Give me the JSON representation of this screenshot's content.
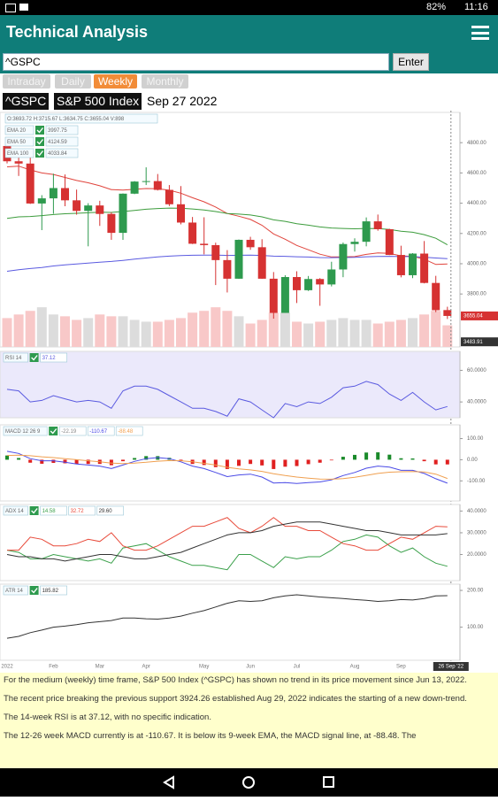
{
  "status_bar": {
    "time": "11:16",
    "battery": "82%"
  },
  "app_bar": {
    "title": "Technical Analysis"
  },
  "search": {
    "value": "^GSPC",
    "button": "Enter"
  },
  "tabs": [
    "Intraday",
    "Daily",
    "Weekly",
    "Monthly"
  ],
  "active_tab": 2,
  "symbol_bar": {
    "symbol": "^GSPC",
    "name": "S&P 500 Index",
    "date": "Sep 27 2022"
  },
  "chart_data": [
    {
      "type": "candlestick",
      "ohlc_text": "O:3693.72 H:3715.67 L:3634.75 C:3655.04 V:898",
      "categories": [
        "2022",
        null,
        null,
        null,
        "Feb",
        null,
        null,
        null,
        "Mar",
        null,
        null,
        null,
        "Apr",
        null,
        null,
        null,
        null,
        "May",
        null,
        null,
        null,
        "Jun",
        null,
        null,
        null,
        "Jul",
        null,
        null,
        null,
        null,
        "Aug",
        null,
        null,
        null,
        "Sep",
        null,
        null,
        null,
        null
      ],
      "crosshair_date": "26 Sep '22",
      "crosshair_price": 3483.91,
      "ylim": [
        3450,
        5000
      ],
      "yticks": [
        {
          "value": 3800,
          "label": "3800.00"
        },
        {
          "value": 4000,
          "label": "4000.00"
        },
        {
          "value": 4200,
          "label": "4200.00"
        },
        {
          "value": 4400,
          "label": "4400.00"
        },
        {
          "value": 4600,
          "label": "4600.00"
        },
        {
          "value": 4800,
          "label": "4800.00"
        }
      ],
      "up_color": "#2e9a4e",
      "down_color": "#d63232",
      "open": [
        4778,
        4677,
        4662,
        4398,
        4432,
        4500,
        4419,
        4349,
        4385,
        4329,
        4204,
        4463,
        4543,
        4546,
        4488,
        4393,
        4272,
        4132,
        4123,
        4024,
        3901,
        4158,
        4109,
        3901,
        3675,
        3912,
        3825,
        3899,
        3863,
        3962,
        4130,
        4145,
        4280,
        4228,
        4058,
        3924,
        4067,
        3873,
        3693.72
      ],
      "high": [
        4818,
        4750,
        4715,
        4453,
        4595,
        4590,
        4490,
        4400,
        4416,
        4340,
        4465,
        4546,
        4637,
        4593,
        4520,
        4513,
        4309,
        4307,
        4139,
        4090,
        4160,
        4178,
        4162,
        3945,
        3924,
        3950,
        3919,
        3905,
        4013,
        4140,
        4168,
        4306,
        4325,
        4231,
        4119,
        4070,
        4150,
        3920,
        3715.67
      ],
      "low": [
        4663,
        4580,
        4395,
        4222,
        4330,
        4380,
        4324,
        4115,
        4250,
        4158,
        4158,
        4460,
        4520,
        4484,
        4381,
        4260,
        4130,
        4062,
        3859,
        3810,
        3900,
        4092,
        3900,
        3637,
        3675,
        3740,
        3820,
        3722,
        3850,
        3911,
        4080,
        4115,
        4218,
        4057,
        3910,
        3905,
        3870,
        3680,
        3634.75
      ],
      "close": [
        4677,
        4662,
        4398,
        4432,
        4500,
        4419,
        4349,
        4385,
        4329,
        4204,
        4463,
        4543,
        4546,
        4488,
        4393,
        4272,
        4132,
        4123,
        4024,
        3901,
        4158,
        4109,
        3901,
        3675,
        3912,
        3825,
        3899,
        3863,
        3962,
        4130,
        4145,
        4280,
        4228,
        4058,
        3924,
        4067,
        3873,
        3693,
        3655.04
      ],
      "volume": [
        16,
        18,
        20,
        22,
        18,
        17,
        15,
        16,
        18,
        17,
        17,
        15,
        14,
        14,
        15,
        16,
        19,
        20,
        22,
        20,
        17,
        13,
        15,
        19,
        19,
        14,
        13,
        14,
        15,
        16,
        15,
        15,
        13,
        14,
        15,
        16,
        18,
        20,
        12
      ],
      "y2lim": [
        0,
        130
      ],
      "volume_up_color": "#dcdcdc",
      "volume_down_color": "#f8c8c8",
      "series": [
        {
          "name": "EMA 20",
          "color": "#e0443c",
          "last_label": "3997.75",
          "values": [
            4640,
            4645,
            4620,
            4600,
            4590,
            4570,
            4550,
            4535,
            4515,
            4490,
            4487,
            4492,
            4497,
            4496,
            4486,
            4466,
            4436,
            4409,
            4375,
            4332,
            4314,
            4293,
            4254,
            4197,
            4162,
            4121,
            4092,
            4063,
            4045,
            4045,
            4047,
            4062,
            4071,
            4068,
            4052,
            4049,
            4030,
            3995,
            3998
          ]
        },
        {
          "name": "EMA 50",
          "color": "#3c9c3c",
          "last_label": "4124.59",
          "values": [
            4300,
            4310,
            4312,
            4318,
            4325,
            4330,
            4333,
            4337,
            4340,
            4339,
            4345,
            4352,
            4360,
            4365,
            4368,
            4367,
            4362,
            4355,
            4345,
            4332,
            4328,
            4322,
            4310,
            4290,
            4280,
            4265,
            4255,
            4243,
            4236,
            4233,
            4231,
            4233,
            4232,
            4227,
            4215,
            4208,
            4192,
            4168,
            4125
          ]
        },
        {
          "name": "EMA 100",
          "color": "#5a5ae0",
          "last_label": "4033.84",
          "values": [
            3950,
            3960,
            3968,
            3975,
            3985,
            3992,
            3998,
            4004,
            4010,
            4015,
            4022,
            4030,
            4038,
            4045,
            4050,
            4054,
            4056,
            4057,
            4057,
            4055,
            4056,
            4057,
            4055,
            4050,
            4049,
            4046,
            4044,
            4041,
            4040,
            4041,
            4042,
            4046,
            4048,
            4049,
            4047,
            4047,
            4043,
            4038,
            4034
          ]
        }
      ]
    },
    {
      "type": "line",
      "legend_title": "RSI 14",
      "background": "#ebe9fb",
      "ylim": [
        30,
        72
      ],
      "yticks": [
        {
          "value": 40,
          "label": "40.0000"
        },
        {
          "value": 60,
          "label": "60.0000"
        }
      ],
      "series": [
        {
          "color": "#5a5ae0",
          "last_label": "37.12",
          "values": [
            48,
            47,
            40,
            41,
            44,
            42,
            40,
            41,
            40,
            36,
            47,
            50,
            50,
            48,
            44,
            40,
            36,
            36,
            34,
            31,
            42,
            40,
            35,
            30,
            39,
            37,
            40,
            39,
            43,
            49,
            50,
            53,
            51,
            45,
            41,
            46,
            40,
            35,
            37.12
          ]
        }
      ]
    },
    {
      "type": "line",
      "legend_title": "MACD 12 26 9",
      "ylim": [
        -195,
        165
      ],
      "yticks": [
        {
          "value": -100,
          "label": "-100.00"
        },
        {
          "value": 0,
          "label": "0.00"
        },
        {
          "value": 100,
          "label": "100.00"
        }
      ],
      "series": [
        {
          "kind": "histogram",
          "up_color": "#1a8a2a",
          "color": "#e02020",
          "last_label": "-22.19",
          "values": [
            20,
            8,
            -14,
            -19,
            -15,
            -17,
            -20,
            -20,
            -20,
            -26,
            -7,
            8,
            17,
            17,
            9,
            -5,
            -20,
            -25,
            -35,
            -44,
            -29,
            -20,
            -27,
            -44,
            -33,
            -30,
            -21,
            -14,
            -3,
            14,
            23,
            34,
            35,
            24,
            7,
            6,
            -7,
            -22,
            -22.19
          ]
        },
        {
          "color": "#4a4ae6",
          "last_label": "-110.67",
          "values": [
            40,
            30,
            5,
            -5,
            -5,
            -12,
            -20,
            -25,
            -30,
            -42,
            -25,
            -8,
            5,
            10,
            5,
            -10,
            -30,
            -42,
            -60,
            -80,
            -72,
            -68,
            -82,
            -110,
            -108,
            -112,
            -108,
            -105,
            -95,
            -75,
            -60,
            -40,
            -30,
            -35,
            -50,
            -50,
            -65,
            -90,
            -110.67
          ]
        },
        {
          "color": "#f0a050",
          "last_label": "-88.48",
          "values": [
            20,
            22,
            19,
            14,
            10,
            5,
            0,
            -5,
            -10,
            -16,
            -18,
            -16,
            -12,
            -7,
            -4,
            -5,
            -10,
            -17,
            -25,
            -36,
            -43,
            -48,
            -55,
            -66,
            -75,
            -82,
            -87,
            -91,
            -92,
            -89,
            -83,
            -74,
            -65,
            -59,
            -57,
            -56,
            -58,
            -68,
            -88.48
          ]
        }
      ]
    },
    {
      "type": "line",
      "legend_title": "ADX 14",
      "ylim": [
        8,
        43
      ],
      "yticks": [
        {
          "value": 20,
          "label": "20.0000"
        },
        {
          "value": 30,
          "label": "30.0000"
        },
        {
          "value": 40,
          "label": "40.0000"
        }
      ],
      "series": [
        {
          "color": "#3aa04a",
          "last_label": "14.58",
          "values": [
            22,
            21,
            18,
            18,
            20,
            19,
            18,
            17,
            18,
            16,
            23,
            24,
            25,
            22,
            19,
            17,
            15,
            15,
            14,
            13,
            20,
            20,
            17,
            14,
            19,
            18,
            19,
            19,
            22,
            26,
            27,
            29,
            28,
            24,
            21,
            23,
            19,
            16,
            14.58
          ]
        },
        {
          "color": "#e84a3a",
          "last_label": "32.72",
          "values": [
            22,
            22,
            28,
            27,
            24,
            24,
            25,
            27,
            26,
            30,
            24,
            22,
            22,
            24,
            27,
            30,
            33,
            33,
            35,
            37,
            32,
            30,
            33,
            37,
            33,
            33,
            31,
            31,
            28,
            25,
            24,
            22,
            22,
            25,
            28,
            27,
            30,
            33,
            32.72
          ]
        },
        {
          "color": "#333333",
          "last_label": "29.60",
          "values": [
            20,
            19,
            19,
            18,
            18,
            17,
            18,
            19,
            20,
            20,
            19,
            18,
            18,
            19,
            20,
            21,
            23,
            25,
            27,
            29,
            30,
            30,
            31,
            33,
            34,
            35,
            35,
            35,
            34,
            33,
            32,
            31,
            31,
            30,
            29,
            29,
            29,
            29,
            29.6
          ]
        }
      ]
    },
    {
      "type": "line",
      "legend_title": "ATR 14",
      "ylim": [
        10,
        217
      ],
      "yticks": [
        {
          "value": 100,
          "label": "100.00"
        },
        {
          "value": 200,
          "label": "200.00"
        }
      ],
      "series": [
        {
          "color": "#333333",
          "last_label": "185.82",
          "values": [
            70,
            75,
            85,
            92,
            100,
            103,
            107,
            112,
            115,
            118,
            125,
            125,
            123,
            122,
            125,
            130,
            138,
            145,
            155,
            165,
            172,
            170,
            172,
            180,
            185,
            188,
            185,
            182,
            180,
            178,
            175,
            173,
            170,
            172,
            175,
            174,
            178,
            185,
            185.82
          ]
        }
      ]
    }
  ],
  "analysis": [
    "For the medium (weekly) time frame, S&P 500 Index (^GSPC) has shown no trend in its price movement since Jun 13, 2022.",
    "The recent price breaking the previous support 3924.26 established Aug 29, 2022 indicates the starting of a new down-trend.",
    "The 14-week RSI is at 37.12, with no specific indication.",
    "The 12-26 week MACD currently is at -110.67. It is below its 9-week EMA, the MACD signal line, at -88.48. The"
  ]
}
